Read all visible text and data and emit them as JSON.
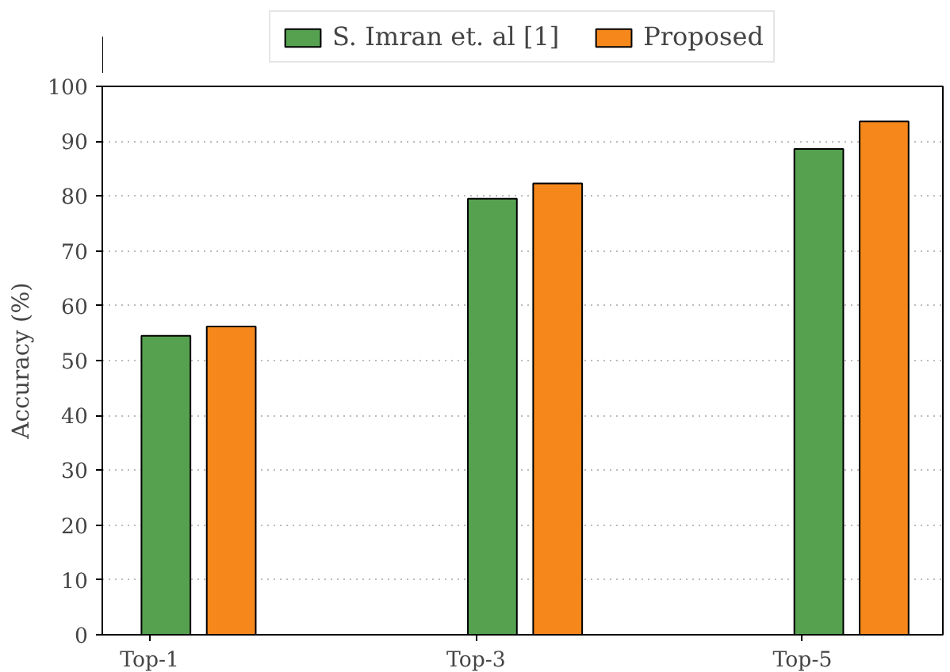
{
  "chart_data": {
    "type": "bar",
    "ylabel": "Accuracy (%)",
    "categories": [
      "Top-1",
      "Top-3",
      "Top-5"
    ],
    "series": [
      {
        "name": "S. Imran et. al [1]",
        "color": "#55a14f",
        "values": [
          54.5,
          79.5,
          88.6
        ]
      },
      {
        "name": "Proposed",
        "color": "#f5871b",
        "values": [
          56.2,
          82.3,
          93.6
        ]
      }
    ],
    "ylim": [
      0,
      100
    ],
    "yticks": [
      0,
      10,
      20,
      30,
      40,
      50,
      60,
      70,
      80,
      90,
      100
    ],
    "grid": "y",
    "legend": "top"
  }
}
